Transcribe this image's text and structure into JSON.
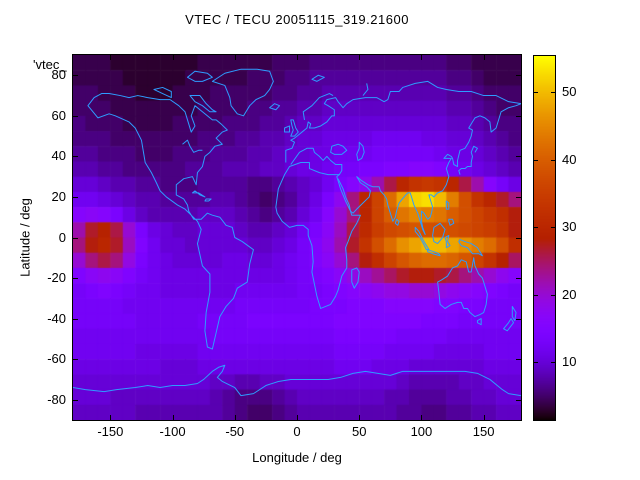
{
  "title": "VTEC / TECU 20051115_319.21600",
  "stray_label": "'vtec_",
  "axes": {
    "x": {
      "label": "Longitude / deg",
      "range": [
        -180,
        180
      ],
      "ticks": [
        -150,
        -100,
        -50,
        0,
        50,
        100,
        150
      ]
    },
    "y": {
      "label": "Latitude / deg",
      "range": [
        -90,
        90
      ],
      "ticks": [
        80,
        60,
        40,
        20,
        0,
        -20,
        -40,
        -60,
        -80
      ]
    },
    "colorbar": {
      "range": [
        1.4,
        55.4
      ],
      "ticks": [
        10,
        20,
        30,
        40,
        50
      ]
    }
  },
  "colors": {
    "coastline": "#2E9CFF",
    "border": "#000000",
    "background": "#FFFFFF",
    "palette_name": "gnuplot-default-pm3d (black-violet-red-orange-yellow)"
  },
  "chart_data": {
    "type": "heatmap",
    "title": "VTEC / TECU 20051115_319.21600",
    "xlabel": "Longitude / deg",
    "ylabel": "Latitude / deg",
    "units": "TECU",
    "x_range": [
      -180,
      180
    ],
    "y_range": [
      -90,
      90
    ],
    "color_range": [
      1.4,
      55.4
    ],
    "colorbar_ticks": [
      10,
      20,
      30,
      40,
      50
    ],
    "grid_note": "VTEC values in TECU; rows top (lat 90..82.5) to bottom (lat -82.5..-90), 7.5 deg lat bands; 36 columns of 10 deg lon from -180 to 180",
    "lon_start": -180,
    "lon_step": 10,
    "lat_start": 90,
    "lat_step": -7.5,
    "grid": [
      [
        4,
        4,
        4,
        3,
        3,
        3,
        3,
        3,
        3,
        3,
        4,
        4,
        4,
        4,
        4,
        4,
        5,
        5,
        5,
        6,
        6,
        6,
        6,
        6,
        6,
        6,
        6,
        6,
        6,
        6,
        5,
        5,
        4,
        4,
        4,
        4
      ],
      [
        4,
        4,
        4,
        4,
        3,
        3,
        3,
        3,
        3,
        4,
        4,
        4,
        4,
        4,
        5,
        5,
        5,
        6,
        6,
        7,
        7,
        7,
        7,
        7,
        7,
        7,
        7,
        7,
        7,
        7,
        6,
        6,
        5,
        4,
        4,
        4
      ],
      [
        5,
        5,
        4,
        4,
        4,
        3,
        3,
        3,
        4,
        4,
        4,
        5,
        5,
        5,
        5,
        5,
        6,
        6,
        7,
        7,
        8,
        8,
        8,
        8,
        8,
        8,
        8,
        8,
        8,
        8,
        7,
        7,
        6,
        5,
        5,
        5
      ],
      [
        5,
        5,
        5,
        4,
        4,
        4,
        4,
        4,
        4,
        4,
        5,
        5,
        5,
        5,
        6,
        6,
        7,
        7,
        8,
        8,
        9,
        9,
        9,
        9,
        9,
        9,
        9,
        9,
        9,
        9,
        8,
        8,
        7,
        6,
        5,
        5
      ],
      [
        6,
        5,
        5,
        5,
        4,
        4,
        4,
        4,
        5,
        5,
        5,
        5,
        6,
        6,
        6,
        7,
        7,
        8,
        9,
        9,
        10,
        10,
        10,
        10,
        10,
        10,
        10,
        10,
        10,
        10,
        9,
        9,
        8,
        7,
        6,
        6
      ],
      [
        6,
        6,
        6,
        5,
        5,
        5,
        5,
        5,
        5,
        5,
        6,
        6,
        6,
        7,
        7,
        8,
        8,
        9,
        10,
        10,
        11,
        11,
        11,
        11,
        12,
        12,
        12,
        12,
        11,
        11,
        10,
        10,
        9,
        8,
        7,
        6
      ],
      [
        7,
        7,
        6,
        6,
        6,
        5,
        5,
        5,
        6,
        6,
        6,
        7,
        7,
        7,
        8,
        8,
        9,
        10,
        10,
        11,
        11,
        12,
        12,
        12,
        13,
        13,
        13,
        13,
        13,
        12,
        11,
        11,
        10,
        9,
        8,
        7
      ],
      [
        8,
        8,
        7,
        7,
        6,
        6,
        6,
        6,
        6,
        7,
        7,
        7,
        8,
        8,
        8,
        9,
        9,
        10,
        11,
        11,
        12,
        13,
        13,
        14,
        14,
        15,
        15,
        16,
        16,
        15,
        13,
        12,
        11,
        10,
        9,
        8
      ],
      [
        10,
        10,
        9,
        8,
        8,
        7,
        7,
        6,
        6,
        6,
        7,
        7,
        7,
        7,
        6,
        6,
        7,
        8,
        9,
        10,
        12,
        14,
        16,
        18,
        22,
        26,
        30,
        33,
        34,
        33,
        30,
        26,
        22,
        16,
        13,
        11
      ],
      [
        12,
        12,
        11,
        10,
        9,
        8,
        8,
        7,
        7,
        7,
        7,
        8,
        8,
        7,
        6,
        5,
        6,
        7,
        9,
        11,
        14,
        18,
        24,
        30,
        36,
        42,
        48,
        52,
        53,
        50,
        44,
        38,
        33,
        30,
        27,
        24
      ],
      [
        16,
        17,
        16,
        14,
        11,
        9,
        8,
        8,
        8,
        8,
        9,
        9,
        9,
        8,
        7,
        6,
        7,
        8,
        10,
        12,
        16,
        20,
        24,
        30,
        36,
        40,
        43,
        45,
        44,
        43,
        40,
        38,
        36,
        34,
        32,
        28
      ],
      [
        22,
        27,
        29,
        26,
        20,
        14,
        11,
        10,
        9,
        9,
        10,
        10,
        10,
        9,
        8,
        8,
        9,
        10,
        12,
        14,
        17,
        21,
        26,
        31,
        35,
        37,
        38,
        39,
        38,
        38,
        38,
        37,
        36,
        35,
        33,
        28
      ],
      [
        24,
        28,
        30,
        27,
        21,
        15,
        12,
        10,
        10,
        9,
        10,
        10,
        10,
        10,
        9,
        9,
        10,
        11,
        13,
        15,
        18,
        22,
        27,
        33,
        38,
        42,
        46,
        48,
        50,
        50,
        48,
        46,
        44,
        42,
        38,
        32
      ],
      [
        20,
        24,
        26,
        24,
        19,
        14,
        12,
        11,
        10,
        10,
        10,
        10,
        11,
        11,
        10,
        10,
        11,
        12,
        13,
        15,
        17,
        20,
        24,
        28,
        32,
        36,
        39,
        41,
        42,
        42,
        41,
        39,
        36,
        33,
        29,
        25
      ],
      [
        15,
        17,
        18,
        17,
        15,
        13,
        12,
        11,
        11,
        11,
        11,
        11,
        11,
        11,
        11,
        11,
        11,
        12,
        13,
        14,
        15,
        17,
        19,
        21,
        23,
        25,
        27,
        28,
        28,
        27,
        26,
        24,
        22,
        20,
        18,
        16
      ],
      [
        13,
        14,
        15,
        14,
        13,
        12,
        12,
        11,
        11,
        11,
        11,
        11,
        11,
        12,
        12,
        12,
        12,
        12,
        13,
        13,
        14,
        15,
        16,
        17,
        18,
        19,
        19,
        20,
        20,
        19,
        18,
        17,
        16,
        15,
        14,
        13
      ],
      [
        13,
        13,
        13,
        13,
        12,
        12,
        12,
        12,
        12,
        12,
        12,
        12,
        12,
        13,
        13,
        13,
        13,
        13,
        13,
        14,
        14,
        14,
        15,
        15,
        15,
        16,
        16,
        16,
        16,
        15,
        15,
        14,
        14,
        13,
        13,
        13
      ],
      [
        13,
        13,
        13,
        13,
        13,
        12,
        12,
        12,
        12,
        12,
        13,
        13,
        13,
        13,
        14,
        14,
        14,
        14,
        14,
        14,
        14,
        15,
        15,
        15,
        15,
        15,
        15,
        15,
        14,
        14,
        14,
        13,
        13,
        13,
        13,
        13
      ],
      [
        12,
        12,
        12,
        12,
        12,
        12,
        12,
        12,
        12,
        12,
        12,
        13,
        13,
        13,
        13,
        13,
        13,
        13,
        13,
        13,
        13,
        14,
        14,
        14,
        14,
        14,
        13,
        13,
        13,
        13,
        12,
        12,
        12,
        12,
        12,
        12
      ],
      [
        12,
        12,
        12,
        12,
        12,
        11,
        11,
        11,
        11,
        11,
        12,
        12,
        12,
        12,
        12,
        12,
        12,
        12,
        12,
        12,
        12,
        13,
        13,
        13,
        13,
        12,
        12,
        12,
        12,
        11,
        11,
        11,
        11,
        12,
        12,
        12
      ],
      [
        11,
        11,
        11,
        11,
        11,
        11,
        11,
        10,
        10,
        10,
        11,
        11,
        11,
        11,
        11,
        11,
        11,
        11,
        11,
        11,
        11,
        12,
        12,
        12,
        11,
        11,
        11,
        10,
        10,
        10,
        10,
        10,
        10,
        11,
        11,
        11
      ],
      [
        10,
        10,
        10,
        10,
        10,
        10,
        10,
        10,
        10,
        10,
        10,
        9,
        9,
        8,
        8,
        9,
        9,
        10,
        10,
        10,
        10,
        10,
        10,
        10,
        10,
        10,
        9,
        8,
        8,
        8,
        8,
        9,
        9,
        10,
        10,
        10
      ],
      [
        10,
        10,
        10,
        9,
        9,
        9,
        9,
        9,
        9,
        9,
        9,
        8,
        7,
        6,
        6,
        6,
        7,
        8,
        9,
        9,
        9,
        9,
        9,
        9,
        9,
        8,
        8,
        7,
        7,
        7,
        8,
        8,
        9,
        9,
        10,
        10
      ],
      [
        9,
        9,
        9,
        9,
        9,
        8,
        8,
        8,
        8,
        8,
        8,
        8,
        7,
        6,
        5,
        5,
        6,
        7,
        8,
        8,
        8,
        8,
        8,
        8,
        8,
        8,
        7,
        7,
        6,
        6,
        7,
        7,
        8,
        8,
        9,
        9
      ]
    ]
  },
  "map": {
    "coastlines": [
      "M -168,-65 L -160,-59 -151,-61 -146,-60 -135,-57 -130,-54 -125,-48 -122,-37 -117,-32 -113,-27 -110,-23 -105,-20 -96,-16 -90,-14 -85,-11 -80,-8 -77,-4 -80,3 -76,14 -70,18 -70,27 -73,37 -74,46 -72,54 -68,55 -65,47 -62,39 -57,34 -51,30 -48,25 -40,22 -38,13 -35,6 -44,2 -50,0 -52,-5 -57,-6 -62,-10 -68,-11 -72,-12 -77,-9 -80,-9 -83,-9 -87,-13 -88,-16 -91,-19 -97,-21 -97,-26 -91,-29 -84,-30 -81,-26 -80,-32 -76,-35 -74,-40 -70,-42 -66,-45 -60,-46 -65,-49 -60,-52 -56,-53 -61,-56 -65,-58 -68,-58 -76,-62 -82,-65 -85,-60 -82,-55 -85,-52 -87,-56 -90,-62 -95,-65 -102,-68 -110,-68 -120,-69 -128,-70 -135,-69 -142,-70 -151,-71 -157,-71 -163,-69 Z",
      "M -43,-60 L -48,-61 -53,-65 -54,-69 -58,-75 -68,-77 -58,-81 -45,-83 -32,-83 -22,-82 -19,-77 -22,-73 -26,-70 -33,-68 -38,-65 -41,-62 Z",
      "M -65,-62 L -68,-63 -73,-66 -78,-70 -86,-70 -82,-67 -76,-65 -70,-62 Z",
      "M -101,-69 L -108,-71 -115,-73 -108,-74 -101,-72 Z",
      "M -82,-77 L -88,-79 -82,-82 -72,-81 -68,-79 -76,-77 Z",
      "M -22,-64 L -17,-63 -14,-65 -18,-66 Z",
      "M -5,-50 L -3,-53 -4,-55 -5,-58 -3,-58 -1,-54 1,-52 -2,-50 Z",
      "M -10,-52 L -6,-52 -6,-55 -10,-54 Z",
      "M -9,-37 L -9,-43 -4,-44 -2,-47 -5,-48 -2,-49 2,-51 4,-52 8,-54 9,-57 11,-56 10,-54 14,-54 19,-55 24,-57 28,-60 30,-60 30,-63 25,-65 22,-66 24,-68 31,-69 33,-67 37,-64 40,-66 45,-68 55,-69 64,-69 70,-67 73,-68 75,-72 82,-72 85,-74 95,-76 105,-77 113,-74 120,-73 130,-72 140,-72 150,-70 160,-70 170,-67 180,-66",
      "M 6,-58 L 5,-62 12,-65 18,-69 26,-71 29,-70",
      "M -5,-36 L 2,-42 8,-44 13,-44 14,-42 18,-40 21,-38 24,-40 27,-38 31,-36 36,-36 36,-33 34,-31",
      "M 34,-31 L 25,-31 18,-32 10,-34 10,-37 3,-37 -6,-35 -10,-31 -15,-24 -17,-15 -16,-12 -12,-8 -6,-5 0,-6 5,-6 9,-4 9,-1 12,4 13,12 12,17 14,23 16,29 19,35 23,34 27,33 31,29 33,26 36,19 40,15 40,11 39,5 41,2 44,-3 48,-7 51,-11 47,-11 44,-11 43,-13 39,-18 37,-21 35,-24 33,-28 32,-30 Z",
      "M 33,-29 L 37,-24 39,-20 42,-16 43,-13 45,-12 48,-14 53,-17 58,-20 59,-23 56,-25 51,-27 48,-30 52,-28 57,-26 61,-25 66,-25 67,-23 70,-21 72,-19 73,-16 75,-12 77,-8 79,-10 80,-13 82,-17 86,-20 89,-22 91,-22 92,-20 94,-16 97,-12 99,-8 101,-4 103,-1.5 101,-5 100,-8 100,-13 102,-12 105,-9 107,-10 108,-12 109,-15 107,-19 106,-21 108,-21 110,-20 113,-22 117,-23 120,-26 122,-30 121,-32 120,-34 122,-37 124,-39 121,-39 118,-39 121,-41 124,-40 125,-39 126,-36 129,-35 129,-38 131,-43 135,-44 138,-47 140,-50 141,-53 138,-54 141,-57 143,-59 147,-60 151,-59 155,-57 156,-52 160,-54 162,-58 164,-62 170,-64 176,-65 180,-66",
      "M 80,-9 L 82,-8 81,-6 79,-7 Z",
      "M 50,-47 L 53,-45 54,-42 52,-39 49,-38 48,-41 50,-44 Z",
      "M 28,-45 L 33,-46 37,-45 40,-43 36,-41 30,-41 27,-42 Z",
      "M 131,-31 L 130,-33 132,-34 135,-34 137,-35 140,-35 140,-37 141,-40 140,-42 142,-45 145,-44 143,-42",
      "M 95,-5 L 98,-3 102,2 106,6 104,6 99,0 95,-3 Z",
      "M 105,6 L 110,7 114,8 115,9 109,8 105,7 Z",
      "M 109,-1 L 110,-5 115,-7 119,-4 117,0 113,3 110,2 Z",
      "M 119,0 L 122,-1 121,2 123,4 120,5 120,2 Z",
      "M 131,1 L 135,2 140,3 145,5 149,9 146,8 141,8 137,5 132,4 130,2 Z",
      "M 120,-18 L 122,-17 122,-14 120,-14 120,-16 Z",
      "M 122,-9 L 125,-9 126,-7 123,-6 122,-8 Z",
      "M 113,22 L 114,27 115,33 119,35 124,33 129,32 132,32 134,35 137,35 139,37 143,39 147,38 150,37 152,33 153,28 151,24 149,20 146,18 143,14 142,10 140,17 138,17 136,12 132,11 129,14 125,15 121,19 116,21 Z",
      "M 145,41 L 148,40 148,43 145,42 Z",
      "M 173,34 L 176,37 175,41 173,39 Z",
      "M 172,40 L 174,42 169,46 166,45 170,42 Z",
      "M -180,74 L -170,75 -155,76 -145,75 -130,74 -120,73 -110,74 -100,73 -90,73 -80,72 -75,70 -68,66 -63,64 -58,63 -60,66 -64,69 -60,71 -50,74 -45,78 -35,77 -25,73 -15,71 -5,70 5,70 15,70 25,70 35,69 45,67 55,66 65,67 75,68 85,66 95,66 105,66 115,66 125,66 135,66 145,67 155,70 165,75 170,77 180,78",
      "M -92,-46 L -88,-48 -86,-45 -83,-42 -79,-43 -76,-43",
      "M 12,-78 L 17,-80 22,-79 16,-77 Z",
      "M 53,-70 L 57,-73 56,-76",
      "M -84,-22 L -79,-22 -74,-20 -78,-21 -82,-23 Z",
      "M -73,-19 L -69,-19 -71,-18 -74,-18 Z",
      "M 44,16 L 48,15 50,17 49,22 46,25 44,22 44,18 Z"
    ]
  }
}
